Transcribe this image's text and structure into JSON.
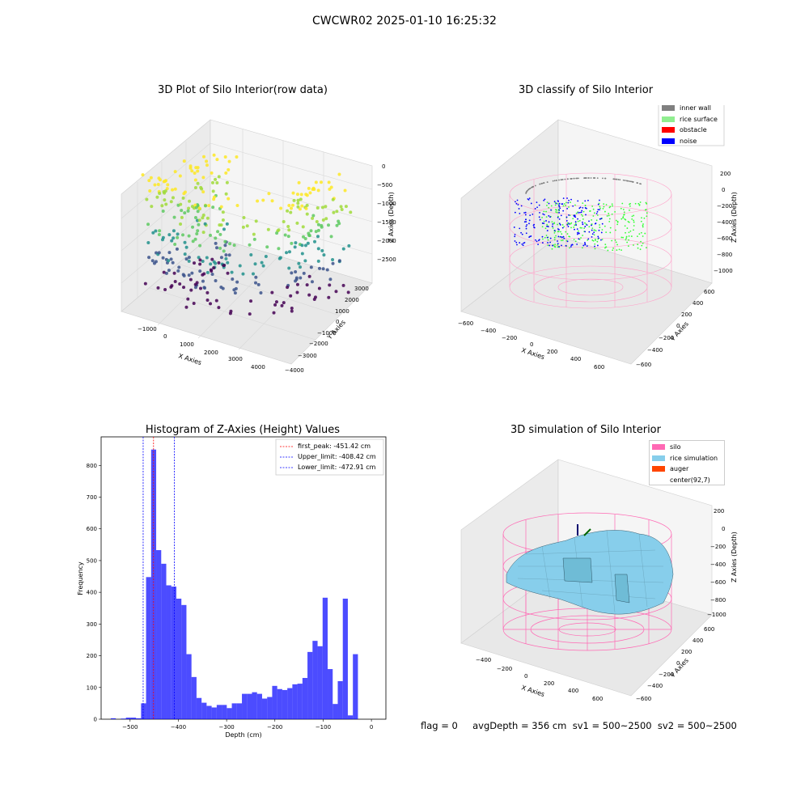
{
  "figure": {
    "title": "CWCWR02 2025-01-10 16:25:32",
    "status_line": "flag = 0     avgDepth = 356 cm  sv1 = 500~2500  sv2 = 500~2500"
  },
  "panels": {
    "raw": {
      "title": "3D Plot of Silo Interior(row data)",
      "x_label": "X Axies",
      "y_label": "Y Axies",
      "z_label": "Z Axies (Depth)",
      "x_ticks": [
        "−1000",
        "0",
        "1000",
        "2000",
        "3000",
        "4000"
      ],
      "y_ticks": [
        "3000",
        "2000",
        "1000",
        "0",
        "−1000",
        "−2000",
        "−3000",
        "−4000"
      ],
      "z_ticks": [
        "0",
        "−500",
        "−1000",
        "−1500",
        "−2000",
        "−2500"
      ]
    },
    "classify": {
      "title": "3D classify of Silo Interior",
      "x_label": "X Axies",
      "y_label": "Y Axies",
      "z_label": "Z Axies (Depth)",
      "x_ticks": [
        "−600",
        "−400",
        "−200",
        "0",
        "200",
        "400",
        "600"
      ],
      "y_ticks": [
        "600",
        "400",
        "200",
        "0",
        "−200",
        "−400",
        "−600"
      ],
      "z_ticks": [
        "200",
        "0",
        "−200",
        "−400",
        "−600",
        "−800",
        "−1000"
      ],
      "legend": [
        {
          "label": "inner wall",
          "color": "#808080"
        },
        {
          "label": "rice surface",
          "color": "#90ee90"
        },
        {
          "label": "obstacle",
          "color": "#ff0000"
        },
        {
          "label": "noise",
          "color": "#0000ff"
        }
      ]
    },
    "simulation": {
      "title": "3D simulation of Silo Interior",
      "x_label": "X Axies",
      "y_label": "Y Axies",
      "z_label": "Z Axies (Depth)",
      "x_ticks": [
        "−400",
        "−200",
        "0",
        "200",
        "400",
        "600"
      ],
      "y_ticks": [
        "600",
        "400",
        "200",
        "0",
        "−200",
        "−400",
        "−600"
      ],
      "z_ticks": [
        "200",
        "0",
        "−200",
        "−400",
        "−600",
        "−800",
        "−1000"
      ],
      "legend": [
        {
          "label": "silo",
          "color": "#ff69b4"
        },
        {
          "label": "rice simulation",
          "color": "#87ceeb"
        },
        {
          "label": "auger",
          "color": "#ff4500"
        },
        {
          "label": "center(92,7)",
          "color": ""
        }
      ]
    }
  },
  "chart_data": [
    {
      "type": "bar",
      "title": "Histogram of Z-Axies (Height) Values",
      "xlabel": "Depth (cm)",
      "ylabel": "Frequency",
      "xlim": [
        -560,
        30
      ],
      "ylim": [
        0,
        890
      ],
      "x_ticks": [
        -500,
        -400,
        -300,
        -200,
        -100,
        0
      ],
      "y_ticks": [
        0,
        100,
        200,
        300,
        400,
        500,
        600,
        700,
        800
      ],
      "bar_color": "#0000ff",
      "bin_width": 10.45,
      "bin_start": -540,
      "values": [
        3,
        0,
        2,
        5,
        5,
        3,
        50,
        448,
        850,
        533,
        490,
        422,
        418,
        380,
        360,
        205,
        133,
        67,
        52,
        42,
        37,
        45,
        45,
        35,
        50,
        50,
        80,
        80,
        85,
        80,
        65,
        70,
        105,
        95,
        92,
        98,
        110,
        112,
        130,
        212,
        247,
        230,
        383,
        158,
        48,
        120,
        380,
        12,
        205
      ],
      "vlines": [
        {
          "label": "first_peak: -451.42 cm",
          "x": -451.42,
          "color": "#ff0000"
        },
        {
          "label": "Upper_limit: -408.42 cm",
          "x": -408.42,
          "color": "#0000ff"
        },
        {
          "label": "Lower_limit: -472.91 cm",
          "x": -472.91,
          "color": "#0000ff"
        }
      ],
      "legend_position": "upper right",
      "grid": false
    }
  ]
}
